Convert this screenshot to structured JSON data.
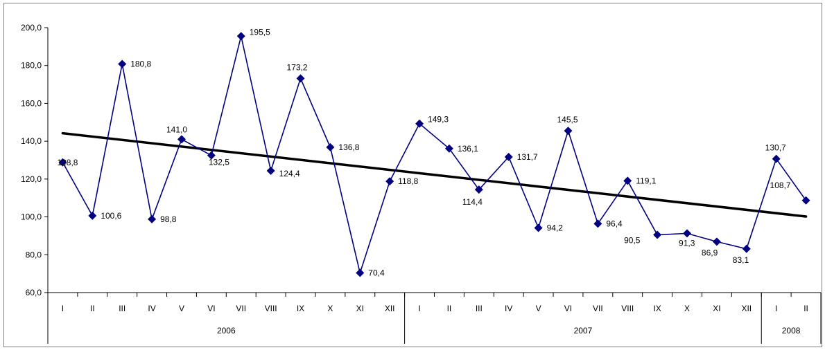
{
  "chart_data": {
    "type": "line",
    "title": "",
    "xlabel": "",
    "ylabel": "",
    "ylim": [
      60,
      200
    ],
    "yticks": [
      "60,0",
      "80,0",
      "100,0",
      "120,0",
      "140,0",
      "160,0",
      "180,0",
      "200,0"
    ],
    "grid": false,
    "legend": "none",
    "categories": [
      "I",
      "II",
      "III",
      "IV",
      "V",
      "VI",
      "VII",
      "VIII",
      "IX",
      "X",
      "XI",
      "XII",
      "I",
      "II",
      "III",
      "IV",
      "V",
      "VI",
      "VII",
      "VIII",
      "IX",
      "X",
      "XI",
      "XII",
      "I",
      "II"
    ],
    "groups": [
      {
        "label": "2006",
        "count": 12
      },
      {
        "label": "2007",
        "count": 12
      },
      {
        "label": "2008",
        "count": 2
      }
    ],
    "series": [
      {
        "color": "#000080",
        "marker": "diamond",
        "values": [
          128.8,
          100.6,
          180.8,
          98.8,
          141.0,
          132.5,
          195.5,
          124.4,
          173.2,
          136.8,
          70.4,
          118.8,
          149.3,
          136.1,
          114.4,
          131.7,
          94.2,
          145.5,
          96.4,
          119.1,
          90.5,
          91.3,
          86.9,
          83.1,
          130.7,
          108.7
        ],
        "labels": [
          "128,8",
          "100,6",
          "180,8",
          "98,8",
          "141,0",
          "132,5",
          "195,5",
          "124,4",
          "173,2",
          "136,8",
          "70,4",
          "118,8",
          "149,3",
          "136,1",
          "114,4",
          "131,7",
          "94,2",
          "145,5",
          "96,4",
          "119,1",
          "90,5",
          "91,3",
          "86,9",
          "83,1",
          "130,7",
          "108,7"
        ]
      }
    ],
    "trendline": {
      "type": "linear",
      "color": "#000000",
      "start_value": 144.2,
      "end_value": 100.2
    }
  }
}
